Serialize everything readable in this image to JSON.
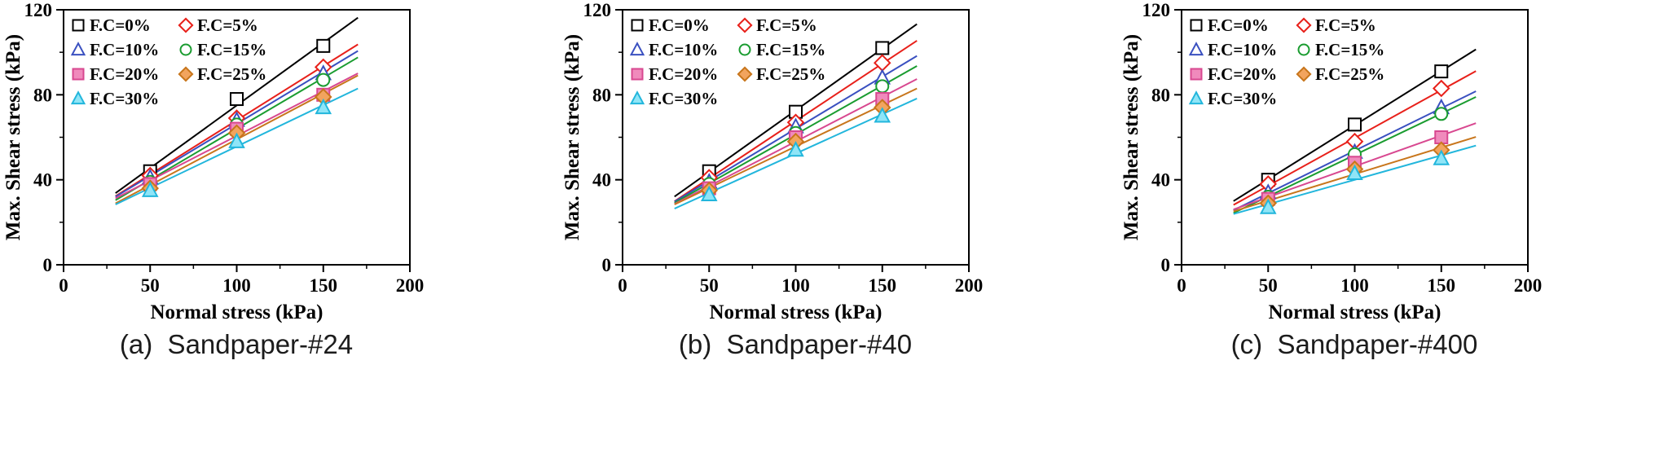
{
  "chart_data": [
    {
      "type": "scatter",
      "caption": "(a)  Sandpaper-#24",
      "xlabel": "Normal stress (kPa)",
      "ylabel": "Max. Shear stress (kPa)",
      "xlim": [
        0,
        200
      ],
      "ylim": [
        0,
        120
      ],
      "xticks": [
        0,
        50,
        100,
        150,
        200
      ],
      "yticks": [
        0,
        40,
        80,
        120
      ],
      "x_minor_step": 25,
      "y_minor_step": 20,
      "grid": false,
      "legend_position": "top-left",
      "fit_line_x": [
        30,
        170
      ],
      "x": [
        50,
        100,
        150
      ],
      "series": [
        {
          "name": "F.C=0%",
          "marker": "square",
          "fill": "open",
          "color": "#000000",
          "fillColor": "#ffffff",
          "values": [
            44,
            78,
            103
          ]
        },
        {
          "name": "F.C=5%",
          "marker": "diamond",
          "fill": "open",
          "color": "#e8201a",
          "fillColor": "#ffffff",
          "values": [
            42,
            69,
            93
          ]
        },
        {
          "name": "F.C=10%",
          "marker": "triangle",
          "fill": "open",
          "color": "#3a50c0",
          "fillColor": "#ffffff",
          "values": [
            41,
            68,
            90
          ]
        },
        {
          "name": "F.C=15%",
          "marker": "circle",
          "fill": "open",
          "color": "#1a9c30",
          "fillColor": "#ffffff",
          "values": [
            39,
            66,
            87
          ]
        },
        {
          "name": "F.C=20%",
          "marker": "square",
          "fill": "solid",
          "color": "#d84890",
          "fillColor": "#f08abc",
          "values": [
            38,
            64,
            80
          ]
        },
        {
          "name": "F.C=25%",
          "marker": "diamond",
          "fill": "solid",
          "color": "#c8761c",
          "fillColor": "#f2a45e",
          "values": [
            36,
            62,
            79
          ]
        },
        {
          "name": "F.C=30%",
          "marker": "triangle",
          "fill": "solid",
          "color": "#22b6dc",
          "fillColor": "#8fe5f7",
          "values": [
            35,
            58,
            74
          ]
        }
      ]
    },
    {
      "type": "scatter",
      "caption": "(b)  Sandpaper-#40",
      "xlabel": "Normal stress (kPa)",
      "ylabel": "Max. Shear stress (kPa)",
      "xlim": [
        0,
        200
      ],
      "ylim": [
        0,
        120
      ],
      "xticks": [
        0,
        50,
        100,
        150,
        200
      ],
      "yticks": [
        0,
        40,
        80,
        120
      ],
      "x_minor_step": 25,
      "y_minor_step": 20,
      "grid": false,
      "legend_position": "top-left",
      "fit_line_x": [
        30,
        170
      ],
      "x": [
        50,
        100,
        150
      ],
      "series": [
        {
          "name": "F.C=0%",
          "marker": "square",
          "fill": "open",
          "color": "#000000",
          "fillColor": "#ffffff",
          "values": [
            44,
            72,
            102
          ]
        },
        {
          "name": "F.C=5%",
          "marker": "diamond",
          "fill": "open",
          "color": "#e8201a",
          "fillColor": "#ffffff",
          "values": [
            41,
            67,
            95
          ]
        },
        {
          "name": "F.C=10%",
          "marker": "triangle",
          "fill": "open",
          "color": "#3a50c0",
          "fillColor": "#ffffff",
          "values": [
            39,
            65,
            88
          ]
        },
        {
          "name": "F.C=15%",
          "marker": "circle",
          "fill": "open",
          "color": "#1a9c30",
          "fillColor": "#ffffff",
          "values": [
            38,
            62,
            84
          ]
        },
        {
          "name": "F.C=20%",
          "marker": "square",
          "fill": "solid",
          "color": "#d84890",
          "fillColor": "#f08abc",
          "values": [
            36,
            60,
            78
          ]
        },
        {
          "name": "F.C=25%",
          "marker": "diamond",
          "fill": "solid",
          "color": "#c8761c",
          "fillColor": "#f2a45e",
          "values": [
            35,
            58,
            74
          ]
        },
        {
          "name": "F.C=30%",
          "marker": "triangle",
          "fill": "solid",
          "color": "#22b6dc",
          "fillColor": "#8fe5f7",
          "values": [
            33,
            54,
            70
          ]
        }
      ]
    },
    {
      "type": "scatter",
      "caption": "(c)  Sandpaper-#400",
      "xlabel": "Normal stress (kPa)",
      "ylabel": "Max. Shear stress (kPa)",
      "xlim": [
        0,
        200
      ],
      "ylim": [
        0,
        120
      ],
      "xticks": [
        0,
        50,
        100,
        150,
        200
      ],
      "yticks": [
        0,
        40,
        80,
        120
      ],
      "x_minor_step": 25,
      "y_minor_step": 20,
      "grid": false,
      "legend_position": "top-left",
      "fit_line_x": [
        30,
        170
      ],
      "x": [
        50,
        100,
        150
      ],
      "series": [
        {
          "name": "F.C=0%",
          "marker": "square",
          "fill": "open",
          "color": "#000000",
          "fillColor": "#ffffff",
          "values": [
            40,
            66,
            91
          ]
        },
        {
          "name": "F.C=5%",
          "marker": "diamond",
          "fill": "open",
          "color": "#e8201a",
          "fillColor": "#ffffff",
          "values": [
            38,
            58,
            83
          ]
        },
        {
          "name": "F.C=10%",
          "marker": "triangle",
          "fill": "open",
          "color": "#3a50c0",
          "fillColor": "#ffffff",
          "values": [
            34,
            53,
            74
          ]
        },
        {
          "name": "F.C=15%",
          "marker": "circle",
          "fill": "open",
          "color": "#1a9c30",
          "fillColor": "#ffffff",
          "values": [
            32,
            52,
            71
          ]
        },
        {
          "name": "F.C=20%",
          "marker": "square",
          "fill": "solid",
          "color": "#d84890",
          "fillColor": "#f08abc",
          "values": [
            31,
            48,
            60
          ]
        },
        {
          "name": "F.C=25%",
          "marker": "diamond",
          "fill": "solid",
          "color": "#c8761c",
          "fillColor": "#f2a45e",
          "values": [
            29,
            45,
            54
          ]
        },
        {
          "name": "F.C=30%",
          "marker": "triangle",
          "fill": "solid",
          "color": "#22b6dc",
          "fillColor": "#8fe5f7",
          "values": [
            27,
            43,
            50
          ]
        }
      ]
    }
  ]
}
